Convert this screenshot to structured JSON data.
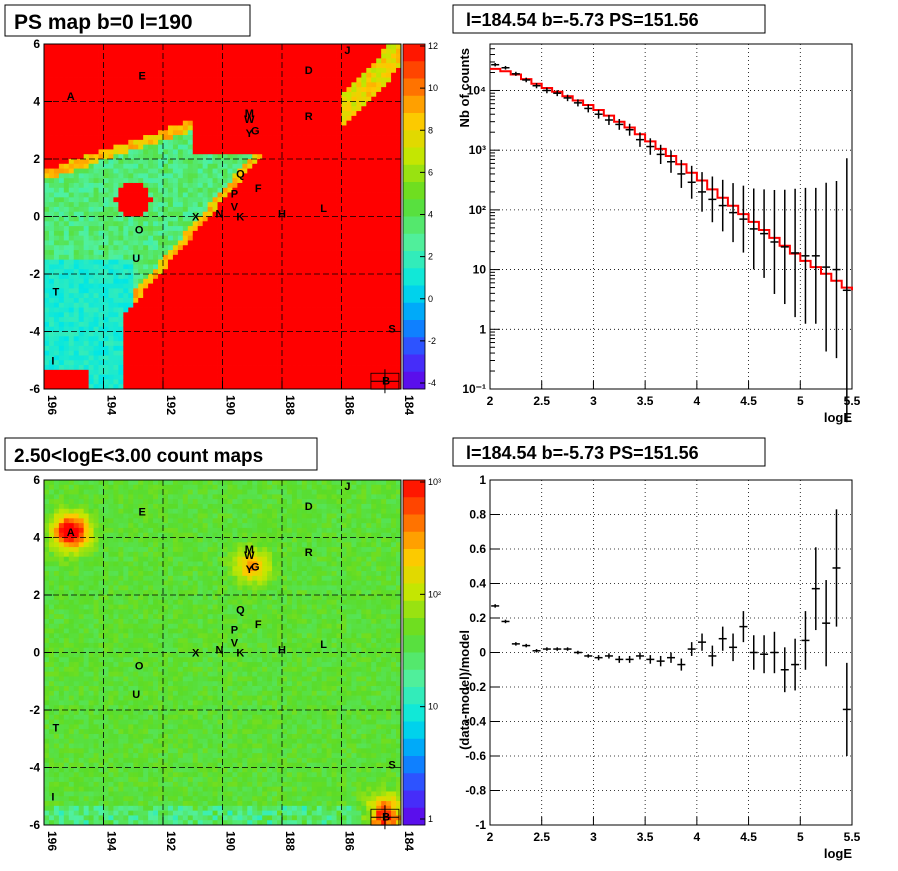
{
  "chart_data": [
    {
      "type": "heatmap",
      "panel": "top-left",
      "title": "PS map b=0 l=190",
      "x_ticks": [
        "196",
        "194",
        "192",
        "190",
        "188",
        "186",
        "184"
      ],
      "y_ticks": [
        "6",
        "4",
        "2",
        "0",
        "-2",
        "-4",
        "-6"
      ],
      "xlim": [
        196,
        184
      ],
      "ylim": [
        -6,
        6
      ],
      "colorbar": {
        "ticks": [
          "12",
          "10",
          "8",
          "6",
          "4",
          "2",
          "0",
          "-2",
          "-4"
        ],
        "range": [
          -5,
          12
        ],
        "scale": "linear"
      },
      "sources": [
        {
          "label": "A",
          "l": 195.1,
          "b": 4.2
        },
        {
          "label": "E",
          "l": 192.7,
          "b": 4.9
        },
        {
          "label": "D",
          "l": 187.1,
          "b": 5.1
        },
        {
          "label": "J",
          "l": 185.8,
          "b": 5.8
        },
        {
          "label": "M",
          "l": 189.1,
          "b": 3.6
        },
        {
          "label": "W",
          "l": 189.1,
          "b": 3.4
        },
        {
          "label": "G",
          "l": 188.9,
          "b": 3.0
        },
        {
          "label": "Y",
          "l": 189.1,
          "b": 2.9
        },
        {
          "label": "R",
          "l": 187.1,
          "b": 3.5
        },
        {
          "label": "Q",
          "l": 189.4,
          "b": 1.5
        },
        {
          "label": "F",
          "l": 188.8,
          "b": 1.0
        },
        {
          "label": "P",
          "l": 189.6,
          "b": 0.8
        },
        {
          "label": "V",
          "l": 189.6,
          "b": 0.35
        },
        {
          "label": "N",
          "l": 190.1,
          "b": 0.1
        },
        {
          "label": "K",
          "l": 189.4,
          "b": 0.0
        },
        {
          "label": "X",
          "l": 190.9,
          "b": 0.0
        },
        {
          "label": "H",
          "l": 188.0,
          "b": 0.1
        },
        {
          "label": "L",
          "l": 186.6,
          "b": 0.3
        },
        {
          "label": "O",
          "l": 192.8,
          "b": -0.45
        },
        {
          "label": "U",
          "l": 192.9,
          "b": -1.45
        },
        {
          "label": "T",
          "l": 195.6,
          "b": -2.6
        },
        {
          "label": "S",
          "l": 184.3,
          "b": -3.9
        },
        {
          "label": "I",
          "l": 195.7,
          "b": -5.0
        },
        {
          "label": "B",
          "l": 184.5,
          "b": -5.7
        }
      ]
    },
    {
      "type": "line",
      "panel": "top-right",
      "title": "l=184.54 b=-5.73 PS=151.56",
      "xlabel": "logE",
      "ylabel": "Nb of counts",
      "xlim": [
        2,
        5.5
      ],
      "ylim": [
        0.1,
        60000
      ],
      "yscale": "log",
      "x_ticks": [
        "2",
        "2.5",
        "3",
        "3.5",
        "4",
        "4.5",
        "5",
        "5.5"
      ],
      "y_ticks": [
        "10⁻¹",
        "1",
        "10",
        "10²",
        "10³",
        "10⁴"
      ],
      "grid": true,
      "data_points": [
        [
          2.05,
          27000
        ],
        [
          2.15,
          24000
        ],
        [
          2.25,
          19000
        ],
        [
          2.35,
          15000
        ],
        [
          2.45,
          12000
        ],
        [
          2.55,
          10000
        ],
        [
          2.65,
          9000
        ],
        [
          2.75,
          7500
        ],
        [
          2.85,
          6200
        ],
        [
          2.95,
          5000
        ],
        [
          3.05,
          4000
        ],
        [
          3.15,
          3200
        ],
        [
          3.25,
          2700
        ],
        [
          3.35,
          2200
        ],
        [
          3.45,
          1500
        ],
        [
          3.55,
          1150
        ],
        [
          3.65,
          850
        ],
        [
          3.75,
          640
        ],
        [
          3.85,
          400
        ],
        [
          3.95,
          290
        ],
        [
          4.05,
          200
        ],
        [
          4.15,
          150
        ],
        [
          4.25,
          118
        ],
        [
          4.35,
          90
        ],
        [
          4.45,
          70
        ],
        [
          4.55,
          48
        ],
        [
          4.65,
          40
        ],
        [
          4.75,
          29
        ],
        [
          4.85,
          24
        ],
        [
          4.95,
          19
        ],
        [
          5.05,
          17
        ],
        [
          5.15,
          17
        ],
        [
          5.25,
          11
        ],
        [
          5.35,
          10
        ],
        [
          5.45,
          4.5
        ]
      ],
      "model": [
        [
          2.0,
          23000
        ],
        [
          2.1,
          21000
        ],
        [
          2.2,
          18500
        ],
        [
          2.3,
          15500
        ],
        [
          2.4,
          13000
        ],
        [
          2.5,
          11000
        ],
        [
          2.6,
          9500
        ],
        [
          2.7,
          8000
        ],
        [
          2.8,
          6800
        ],
        [
          2.9,
          5700
        ],
        [
          3.0,
          4700
        ],
        [
          3.1,
          3800
        ],
        [
          3.2,
          3000
        ],
        [
          3.3,
          2400
        ],
        [
          3.4,
          1850
        ],
        [
          3.5,
          1400
        ],
        [
          3.6,
          1050
        ],
        [
          3.7,
          800
        ],
        [
          3.8,
          580
        ],
        [
          3.9,
          420
        ],
        [
          4.0,
          310
        ],
        [
          4.1,
          220
        ],
        [
          4.2,
          160
        ],
        [
          4.3,
          117
        ],
        [
          4.4,
          85
        ],
        [
          4.5,
          63
        ],
        [
          4.6,
          46
        ],
        [
          4.7,
          34
        ],
        [
          4.8,
          25
        ],
        [
          4.9,
          18.5
        ],
        [
          5.0,
          14
        ],
        [
          5.1,
          11
        ],
        [
          5.2,
          8.5
        ],
        [
          5.3,
          6.5
        ],
        [
          5.4,
          5.0
        ],
        [
          5.5,
          4.5
        ]
      ]
    },
    {
      "type": "heatmap",
      "panel": "bottom-left",
      "title": "2.50<logE<3.00 count maps",
      "x_ticks": [
        "196",
        "194",
        "192",
        "190",
        "188",
        "186",
        "184"
      ],
      "y_ticks": [
        "6",
        "4",
        "2",
        "0",
        "-2",
        "-4",
        "-6"
      ],
      "xlim": [
        196,
        184
      ],
      "ylim": [
        -6,
        6
      ],
      "colorbar": {
        "ticks": [
          "10³",
          "10²",
          "10",
          "1"
        ],
        "scale": "log"
      },
      "sources_same_as": "top-left"
    },
    {
      "type": "scatter",
      "panel": "bottom-right",
      "title": "l=184.54 b=-5.73 PS=151.56",
      "xlabel": "logE",
      "ylabel": "(data-model)/model",
      "xlim": [
        2,
        5.5
      ],
      "ylim": [
        -1,
        1
      ],
      "x_ticks": [
        "2",
        "2.5",
        "3",
        "3.5",
        "4",
        "4.5",
        "5",
        "5.5"
      ],
      "y_ticks": [
        "1",
        "0.8",
        "0.6",
        "0.4",
        "0.2",
        "0",
        "-0.2",
        "-0.4",
        "-0.6",
        "-0.8",
        "-1"
      ],
      "grid": true,
      "data_points": [
        [
          2.05,
          0.27,
          0.01
        ],
        [
          2.15,
          0.18,
          0.01
        ],
        [
          2.25,
          0.05,
          0.01
        ],
        [
          2.35,
          0.04,
          0.01
        ],
        [
          2.45,
          0.01,
          0.01
        ],
        [
          2.55,
          0.02,
          0.01
        ],
        [
          2.65,
          0.02,
          0.01
        ],
        [
          2.75,
          0.02,
          0.01
        ],
        [
          2.85,
          0.0,
          0.01
        ],
        [
          2.95,
          -0.02,
          0.01
        ],
        [
          3.05,
          -0.03,
          0.015
        ],
        [
          3.15,
          -0.02,
          0.015
        ],
        [
          3.25,
          -0.04,
          0.02
        ],
        [
          3.35,
          -0.04,
          0.02
        ],
        [
          3.45,
          -0.02,
          0.02
        ],
        [
          3.55,
          -0.04,
          0.025
        ],
        [
          3.65,
          -0.05,
          0.03
        ],
        [
          3.75,
          -0.03,
          0.03
        ],
        [
          3.85,
          -0.07,
          0.035
        ],
        [
          3.95,
          0.02,
          0.04
        ],
        [
          4.05,
          0.06,
          0.05
        ],
        [
          4.15,
          -0.02,
          0.06
        ],
        [
          4.25,
          0.08,
          0.07
        ],
        [
          4.35,
          0.03,
          0.08
        ],
        [
          4.45,
          0.15,
          0.09
        ],
        [
          4.55,
          0.0,
          0.1
        ],
        [
          4.65,
          -0.01,
          0.11
        ],
        [
          4.75,
          0.0,
          0.12
        ],
        [
          4.85,
          -0.1,
          0.13
        ],
        [
          4.95,
          -0.07,
          0.15
        ],
        [
          5.05,
          0.07,
          0.17
        ],
        [
          5.15,
          0.37,
          0.24
        ],
        [
          5.25,
          0.17,
          0.25
        ],
        [
          5.35,
          0.49,
          0.34
        ],
        [
          5.45,
          -0.33,
          0.27
        ]
      ]
    }
  ]
}
